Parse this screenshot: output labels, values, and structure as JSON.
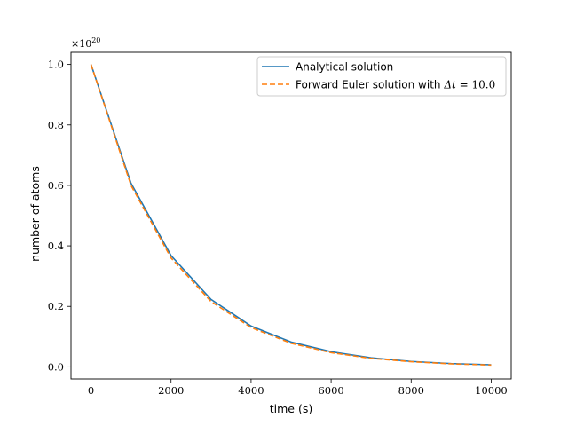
{
  "chart_data": {
    "type": "line",
    "xlabel": "time (s)",
    "ylabel": "number of atoms",
    "xlim": [
      -500,
      10500
    ],
    "ylim": [
      -0.04,
      1.04
    ],
    "y_offset_base": "×10",
    "y_offset_exp": "20",
    "xticks": [
      0,
      2000,
      4000,
      6000,
      8000,
      10000
    ],
    "xtick_labels": [
      "0",
      "2000",
      "4000",
      "6000",
      "8000",
      "10000"
    ],
    "yticks": [
      0.0,
      0.2,
      0.4,
      0.6,
      0.8,
      1.0
    ],
    "ytick_labels": [
      "0.0",
      "0.2",
      "0.4",
      "0.6",
      "0.8",
      "1.0"
    ],
    "grid": false,
    "legend_position": "top-right",
    "x": [
      0,
      1000,
      2000,
      3000,
      4000,
      5000,
      6000,
      7000,
      8000,
      9000,
      10000
    ],
    "series": [
      {
        "name": "Analytical solution",
        "color": "#1f77b4",
        "style": "solid",
        "values": [
          1.0,
          0.607,
          0.368,
          0.223,
          0.135,
          0.082,
          0.05,
          0.03,
          0.018,
          0.011,
          0.007
        ]
      },
      {
        "name_prefix": "Forward Euler solution with ",
        "name_math_var": "Δt",
        "name_math_eq": " = ",
        "name_math_val": "10.0",
        "color": "#ff7f0e",
        "style": "dashed",
        "values": [
          1.0,
          0.6,
          0.36,
          0.216,
          0.13,
          0.078,
          0.047,
          0.028,
          0.017,
          0.01,
          0.006
        ]
      }
    ]
  }
}
